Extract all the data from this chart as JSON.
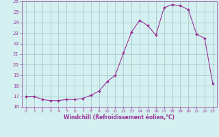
{
  "x": [
    0,
    1,
    2,
    3,
    4,
    5,
    6,
    7,
    8,
    9,
    10,
    11,
    12,
    13,
    14,
    15,
    16,
    17,
    18,
    19,
    20,
    21,
    22,
    23
  ],
  "y": [
    17.0,
    17.0,
    16.7,
    16.6,
    16.6,
    16.7,
    16.7,
    16.8,
    17.1,
    17.5,
    18.4,
    19.0,
    21.1,
    23.1,
    24.2,
    23.7,
    22.8,
    25.4,
    25.7,
    25.6,
    25.2,
    22.9,
    22.5,
    18.2
  ],
  "line_color": "#993399",
  "marker_color": "#993399",
  "bg_color": "#d4f0f0",
  "grid_color": "#aacccc",
  "xlabel": "Windchill (Refroidissement éolien,°C)",
  "xlabel_color": "#993399",
  "tick_color": "#993399",
  "ylim": [
    16,
    26
  ],
  "xlim": [
    -0.5,
    23.5
  ],
  "yticks": [
    16,
    17,
    18,
    19,
    20,
    21,
    22,
    23,
    24,
    25,
    26
  ],
  "xticks": [
    0,
    1,
    2,
    3,
    4,
    5,
    6,
    7,
    8,
    9,
    10,
    11,
    12,
    13,
    14,
    15,
    16,
    17,
    18,
    19,
    20,
    21,
    22,
    23
  ]
}
